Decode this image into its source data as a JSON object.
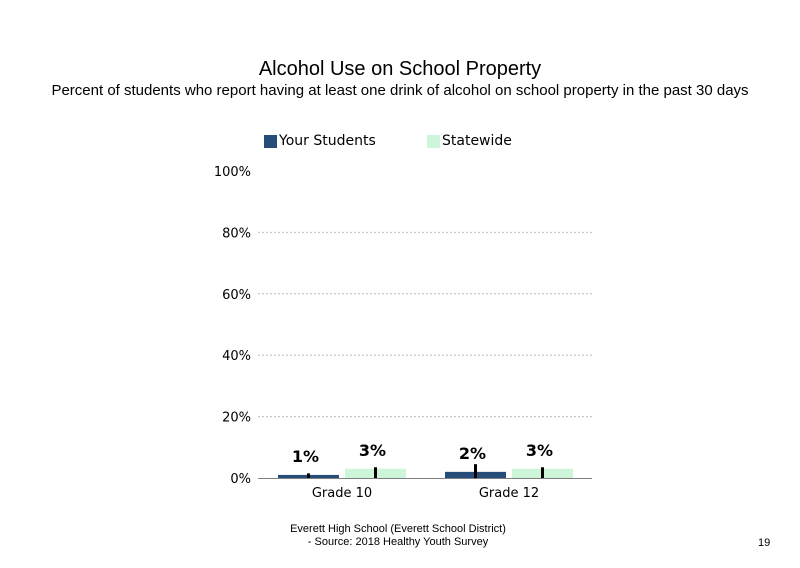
{
  "title": "Alcohol Use on School Property",
  "subtitle": "Percent of students who report having at least one drink of alcohol on school property in the past 30 days",
  "legend": [
    {
      "name": "Your Students",
      "color": "#264C7A"
    },
    {
      "name": "Statewide",
      "color": "#CCF5DA"
    }
  ],
  "footer": {
    "line1": "Everett High School (Everett School District)",
    "line2": "- Source: 2018 Healthy Youth Survey"
  },
  "page_number": "19",
  "chart_data": {
    "type": "bar",
    "title": "Alcohol Use on School Property",
    "categories": [
      "Grade 10",
      "Grade 12"
    ],
    "series": [
      {
        "name": "Your Students",
        "values": [
          1,
          2
        ],
        "labels": [
          "1%",
          "2%"
        ],
        "error_bar_top": [
          1.5,
          4.5
        ],
        "color": "#264C7A"
      },
      {
        "name": "Statewide",
        "values": [
          3,
          3
        ],
        "labels": [
          "3%",
          "3%"
        ],
        "error_bar_top": [
          3.5,
          3.5
        ],
        "color": "#CCF5DA"
      }
    ],
    "y_ticks": [
      "0%",
      "20%",
      "40%",
      "60%",
      "80%",
      "100%"
    ],
    "ylim": [
      0,
      100
    ],
    "grid": true,
    "legend_position": "top"
  }
}
